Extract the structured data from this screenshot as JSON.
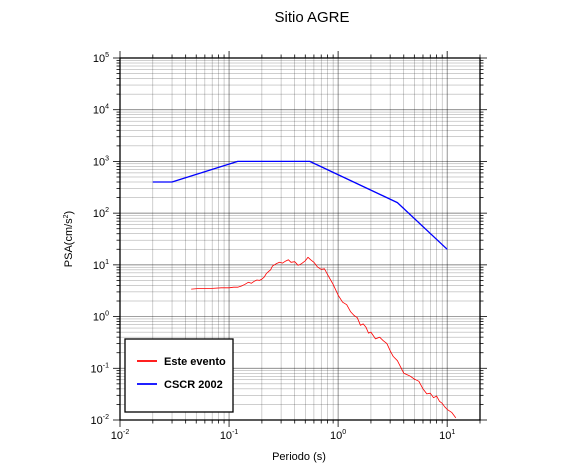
{
  "chart_data": {
    "type": "line",
    "title": "Sitio AGRE",
    "xlabel": "Periodo (s)",
    "ylabel_main": "PSA(cm/s",
    "ylabel_sup": "2",
    "ylabel_tail": ")",
    "x_scale": "log",
    "y_scale": "log",
    "xlim": [
      0.01,
      20
    ],
    "ylim": [
      0.01,
      100000
    ],
    "grid": true,
    "x_ticks": [
      {
        "value": 0.01,
        "base": "10",
        "exp": "-2"
      },
      {
        "value": 0.1,
        "base": "10",
        "exp": "-1"
      },
      {
        "value": 1,
        "base": "10",
        "exp": "0"
      },
      {
        "value": 10,
        "base": "10",
        "exp": "1"
      }
    ],
    "y_ticks": [
      {
        "value": 0.01,
        "base": "10",
        "exp": "-2"
      },
      {
        "value": 0.1,
        "base": "10",
        "exp": "-1"
      },
      {
        "value": 1,
        "base": "10",
        "exp": "0"
      },
      {
        "value": 10,
        "base": "10",
        "exp": "1"
      },
      {
        "value": 100,
        "base": "10",
        "exp": "2"
      },
      {
        "value": 1000,
        "base": "10",
        "exp": "3"
      },
      {
        "value": 10000,
        "base": "10",
        "exp": "4"
      },
      {
        "value": 100000,
        "base": "10",
        "exp": "5"
      }
    ],
    "legend_position": "bottom-left",
    "series": [
      {
        "name": "Este evento",
        "color": "#ff0000",
        "x": [
          0.045,
          0.055,
          0.07,
          0.085,
          0.1,
          0.11,
          0.12,
          0.13,
          0.14,
          0.15,
          0.16,
          0.17,
          0.18,
          0.19,
          0.2,
          0.21,
          0.22,
          0.23,
          0.24,
          0.25,
          0.27,
          0.29,
          0.31,
          0.33,
          0.35,
          0.37,
          0.4,
          0.43,
          0.46,
          0.5,
          0.53,
          0.56,
          0.6,
          0.65,
          0.7,
          0.75,
          0.8,
          0.9,
          1.0,
          1.1,
          1.2,
          1.3,
          1.4,
          1.5,
          1.6,
          1.7,
          1.8,
          1.9,
          2.0,
          2.2,
          2.4,
          2.6,
          2.8,
          3.0,
          3.2,
          3.5,
          3.8,
          4.0,
          4.5,
          5.0,
          5.5,
          6.0,
          6.5,
          7.0,
          7.5,
          8.0,
          8.5,
          9.0,
          9.5,
          10.0,
          11.0,
          12.0
        ],
        "y": [
          3.4,
          3.5,
          3.5,
          3.6,
          3.6,
          3.7,
          3.7,
          3.9,
          4.2,
          4.6,
          4.4,
          4.8,
          5.1,
          5.0,
          5.3,
          5.8,
          6.8,
          7.4,
          8.0,
          9.5,
          10.5,
          11.2,
          10.8,
          11.8,
          12.5,
          11.2,
          11.5,
          9.8,
          10.5,
          12.0,
          14.0,
          12.5,
          11.2,
          9.0,
          8.2,
          8.4,
          6.5,
          4.2,
          2.6,
          1.9,
          1.7,
          1.25,
          1.05,
          0.95,
          0.68,
          0.72,
          0.62,
          0.48,
          0.5,
          0.37,
          0.4,
          0.34,
          0.3,
          0.22,
          0.17,
          0.14,
          0.1,
          0.08,
          0.072,
          0.062,
          0.056,
          0.04,
          0.032,
          0.033,
          0.027,
          0.029,
          0.023,
          0.021,
          0.018,
          0.016,
          0.014,
          0.011
        ]
      },
      {
        "name": "CSCR 2002",
        "color": "#0000ff",
        "x": [
          0.02,
          0.03,
          0.12,
          0.55,
          3.5,
          10.0
        ],
        "y": [
          400,
          400,
          1000,
          1000,
          160,
          20
        ]
      }
    ]
  }
}
